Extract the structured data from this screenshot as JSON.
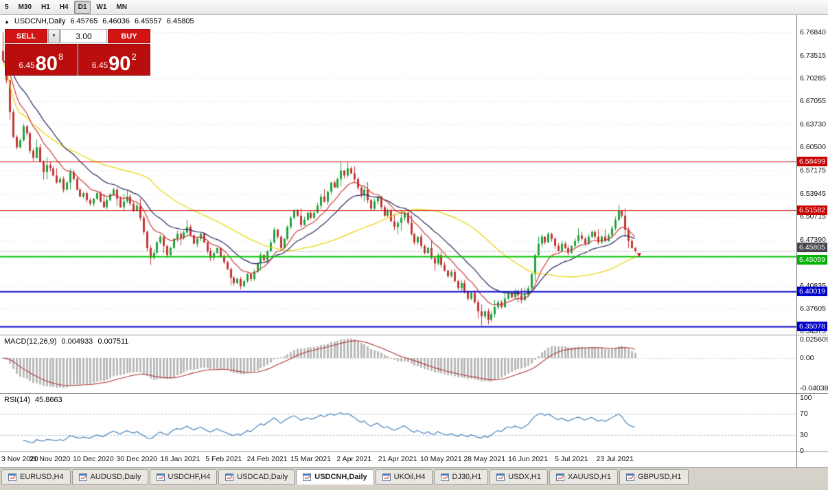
{
  "toolbar": {
    "periods": [
      {
        "label": "5",
        "active": false
      },
      {
        "label": "M30",
        "active": false
      },
      {
        "label": "H1",
        "active": false
      },
      {
        "label": "H4",
        "active": false
      },
      {
        "label": "D1",
        "active": true
      },
      {
        "label": "W1",
        "active": false
      },
      {
        "label": "MN",
        "active": false
      }
    ]
  },
  "chart_header": {
    "collapse_icon": "▲",
    "symbol": "USDCNH,Daily",
    "o": "6.45765",
    "h": "6.46036",
    "l": "6.45557",
    "c": "6.45805"
  },
  "trade_panel": {
    "sell_label": "SELL",
    "buy_label": "BUY",
    "volume": "3.00",
    "volume_drop_icon": "▼",
    "sell_price_prefix": "6.45",
    "sell_price_big": "80",
    "sell_price_sup": "8",
    "buy_price_prefix": "6.45",
    "buy_price_big": "90",
    "buy_price_sup": "2",
    "tick_color": "#ba0d0d"
  },
  "price_axis": {
    "labels": [
      "6.76840",
      "6.73515",
      "6.70285",
      "6.67055",
      "6.63730",
      "6.60500",
      "6.57175",
      "6.53945",
      "6.50715",
      "6.47390",
      "6.44160",
      "6.40835",
      "6.37605",
      "6.34375"
    ]
  },
  "levels": [
    {
      "price": 6.58499,
      "label": "6.58499",
      "color": "#cc0000",
      "badge": "#cc0000",
      "lw": 1,
      "style": "solid",
      "badge_dy": 0
    },
    {
      "price": 6.51582,
      "label": "6.51582",
      "color": "#cc0000",
      "badge": "#cc0000",
      "lw": 1,
      "style": "solid",
      "badge_dy": 0
    },
    {
      "price": 6.45805,
      "label": "6.45805",
      "color": "#9a9a9a",
      "badge": "#44444c",
      "lw": 1,
      "style": "dotted",
      "badge_dy": -5
    },
    {
      "price": 6.45059,
      "label": "6.45059",
      "color": "#00c300",
      "badge": "#00b300",
      "lw": 2,
      "style": "solid",
      "badge_dy": 5
    },
    {
      "price": 6.40019,
      "label": "6.40019",
      "color": "#0000cc",
      "badge": "#0000cc",
      "lw": 2,
      "style": "solid",
      "badge_dy": 0
    },
    {
      "price": 6.35078,
      "label": "6.35078",
      "color": "#0000cc",
      "badge": "#0000cc",
      "lw": 2,
      "style": "solid",
      "badge_dy": 0
    }
  ],
  "price_marker": {
    "index": 189,
    "price": 6.452,
    "color": "#cc1111"
  },
  "colors": {
    "candle_up": "#1fa23d",
    "candle_down": "#c43434",
    "grid": "#e3e3e3",
    "macd_hist": "#b9b9b9",
    "macd_signal": "#b03636",
    "rsi_line": "#3a78b4",
    "rsi_levels": "#a8c0d4"
  },
  "chart_data": {
    "type": "candlestick",
    "symbol": "USDCNH",
    "timeframe": "Daily",
    "ylim": [
      6.3389,
      6.7928
    ],
    "open_first": 6.742,
    "x_labels": [
      {
        "t": "3 Nov 2020",
        "i": 1
      },
      {
        "t": "21 Nov 2020",
        "i": 14
      },
      {
        "t": "10 Dec 2020",
        "i": 27
      },
      {
        "t": "30 Dec 2020",
        "i": 40
      },
      {
        "t": "18 Jan 2021",
        "i": 53
      },
      {
        "t": "5 Feb 2021",
        "i": 66
      },
      {
        "t": "24 Feb 2021",
        "i": 79
      },
      {
        "t": "15 Mar 2021",
        "i": 92
      },
      {
        "t": "2 Apr 2021",
        "i": 105
      },
      {
        "t": "21 Apr 2021",
        "i": 118
      },
      {
        "t": "10 May 2021",
        "i": 131
      },
      {
        "t": "28 May 2021",
        "i": 144
      },
      {
        "t": "16 Jun 2021",
        "i": 157
      },
      {
        "t": "5 Jul 2021",
        "i": 170
      },
      {
        "t": "23 Jul 2021",
        "i": 183
      }
    ],
    "closes": [
      6.728,
      6.7,
      6.655,
      6.62,
      6.605,
      6.615,
      6.635,
      6.625,
      6.6,
      6.59,
      6.605,
      6.585,
      6.57,
      6.58,
      6.575,
      6.565,
      6.555,
      6.56,
      6.545,
      6.555,
      6.57,
      6.56,
      6.545,
      6.535,
      6.54,
      6.53,
      6.525,
      6.532,
      6.54,
      6.528,
      6.52,
      6.53,
      6.538,
      6.545,
      6.532,
      6.52,
      6.528,
      6.535,
      6.525,
      6.515,
      6.522,
      6.505,
      6.485,
      6.462,
      6.448,
      6.455,
      6.47,
      6.478,
      6.465,
      6.452,
      6.462,
      6.475,
      6.482,
      6.476,
      6.484,
      6.492,
      6.48,
      6.468,
      6.475,
      6.482,
      6.47,
      6.458,
      6.448,
      6.455,
      6.462,
      6.45,
      6.442,
      6.432,
      6.42,
      6.412,
      6.418,
      6.408,
      6.415,
      6.425,
      6.418,
      6.428,
      6.44,
      6.452,
      6.445,
      6.458,
      6.47,
      6.488,
      6.478,
      6.462,
      6.475,
      6.492,
      6.505,
      6.515,
      6.508,
      6.495,
      6.502,
      6.512,
      6.505,
      6.512,
      6.522,
      6.535,
      6.528,
      6.542,
      6.555,
      6.548,
      6.56,
      6.572,
      6.565,
      6.575,
      6.568,
      6.56,
      6.548,
      6.538,
      6.545,
      6.53,
      6.518,
      6.528,
      6.535,
      6.52,
      6.508,
      6.515,
      6.5,
      6.492,
      6.498,
      6.505,
      6.512,
      6.498,
      6.482,
      6.47,
      6.478,
      6.465,
      6.455,
      6.462,
      6.448,
      6.44,
      6.452,
      6.438,
      6.43,
      6.422,
      6.428,
      6.415,
      6.405,
      6.412,
      6.4,
      6.39,
      6.398,
      6.385,
      6.372,
      6.365,
      6.372,
      6.36,
      6.368,
      6.378,
      6.385,
      6.378,
      6.39,
      6.398,
      6.392,
      6.4,
      6.395,
      6.388,
      6.395,
      6.405,
      6.425,
      6.452,
      6.468,
      6.478,
      6.47,
      6.482,
      6.475,
      6.465,
      6.458,
      6.468,
      6.462,
      6.455,
      6.465,
      6.472,
      6.48,
      6.475,
      6.468,
      6.478,
      6.485,
      6.478,
      6.47,
      6.478,
      6.472,
      6.48,
      6.49,
      6.502,
      6.515,
      6.508,
      6.488,
      6.472,
      6.462,
      6.458
    ],
    "wick_overrides": [
      {
        "i": 0,
        "h": 6.768
      },
      {
        "i": 44,
        "l": 6.438
      },
      {
        "i": 71,
        "l": 6.403
      },
      {
        "i": 101,
        "h": 6.5845
      },
      {
        "i": 103,
        "h": 6.5838
      },
      {
        "i": 143,
        "l": 6.352
      },
      {
        "i": 145,
        "l": 6.3535
      },
      {
        "i": 184,
        "h": 6.5235
      }
    ],
    "overlays": [
      {
        "type": "SMA",
        "period": 45,
        "color": "#e9d400"
      },
      {
        "type": "EMA",
        "period": 20,
        "color": "#26265e"
      },
      {
        "type": "EMA",
        "period": 10,
        "color": "#cc3a3a"
      }
    ]
  },
  "macd_panel": {
    "title": "MACD(12,26,9)",
    "value_main": "0.004933",
    "value_signal": "0.007511",
    "fast": 12,
    "slow": 26,
    "signal": 9,
    "axis": [
      "0.025609",
      "0.00",
      "-0.04038"
    ]
  },
  "rsi_panel": {
    "title": "RSI(14)",
    "value": "45.8663",
    "period": 14,
    "upper": 70,
    "lower": 30,
    "axis": [
      "100",
      "70",
      "30",
      "0"
    ]
  },
  "tabs": [
    {
      "label": "EURUSD,H4",
      "active": false
    },
    {
      "label": "AUDUSD,Daily",
      "active": false
    },
    {
      "label": "USDCHF,H4",
      "active": false
    },
    {
      "label": "USDCAD,Daily",
      "active": false
    },
    {
      "label": "USDCNH,Daily",
      "active": true
    },
    {
      "label": "UKOil,H4",
      "active": false
    },
    {
      "label": "DJ30,H1",
      "active": false
    },
    {
      "label": "USDX,H1",
      "active": false
    },
    {
      "label": "XAUUSD,H1",
      "active": false
    },
    {
      "label": "GBPUSD,H1",
      "active": false
    }
  ]
}
